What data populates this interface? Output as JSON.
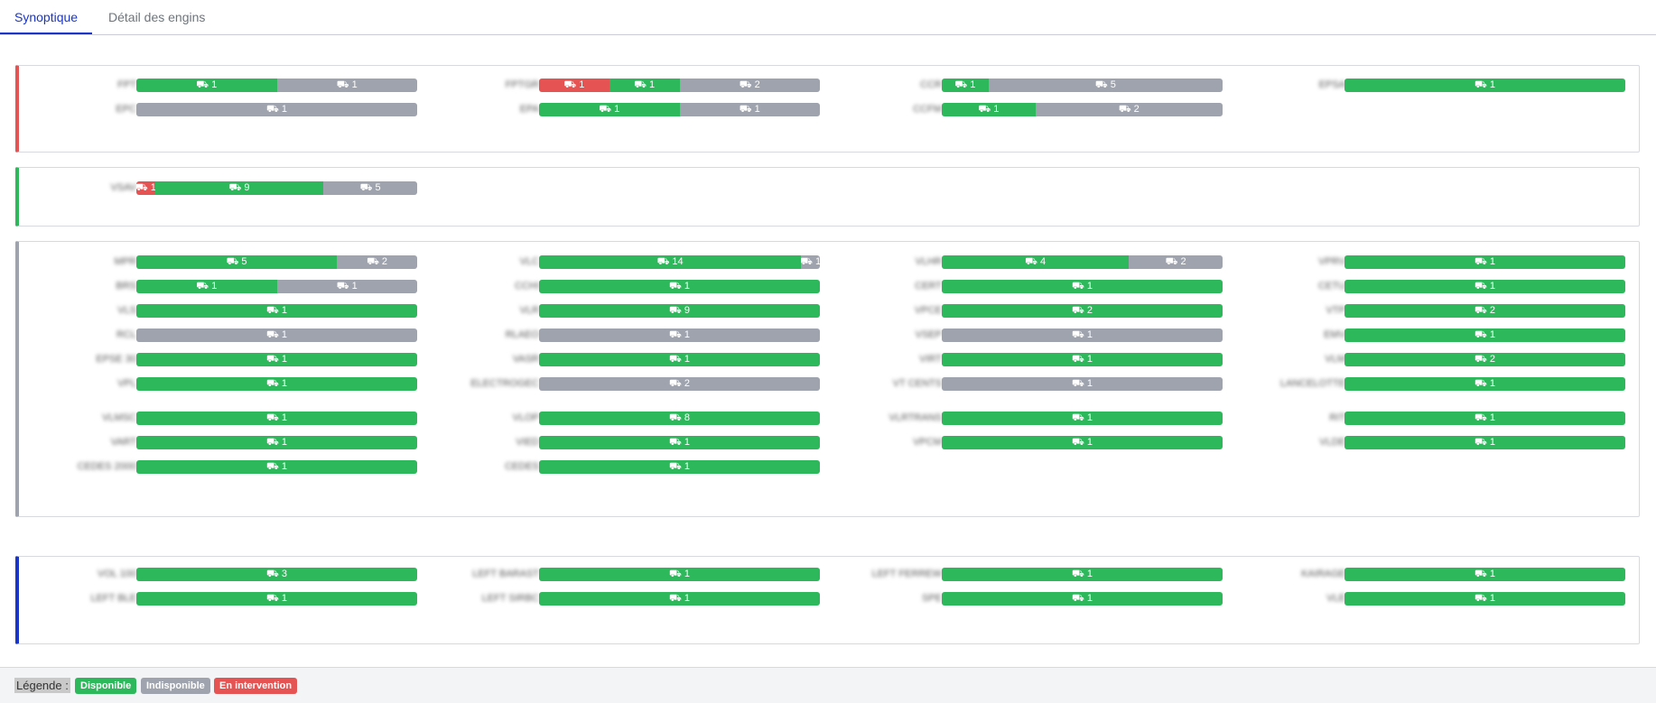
{
  "tabs": [
    {
      "label": "Synoptique",
      "active": true
    },
    {
      "label": "Détail des engins",
      "active": false
    }
  ],
  "colors": {
    "disponible": "#2eb85c",
    "indisponible": "#9ea3ad",
    "intervention": "#e55353",
    "accent": "#1a35c9"
  },
  "icons": {
    "vehicle": "truck-icon"
  },
  "panels": [
    {
      "border": "#e55353",
      "rows": [
        [
          {
            "label": "FPT",
            "segments": [
              {
                "state": "disponible",
                "count": 1
              },
              {
                "state": "indisponible",
                "count": 1
              }
            ]
          },
          {
            "label": "FPTGR",
            "segments": [
              {
                "state": "intervention",
                "count": 1
              },
              {
                "state": "disponible",
                "count": 1
              },
              {
                "state": "indisponible",
                "count": 2
              }
            ]
          },
          {
            "label": "CCR",
            "segments": [
              {
                "state": "disponible",
                "count": 1
              },
              {
                "state": "indisponible",
                "count": 5
              }
            ]
          },
          {
            "label": "EPSA",
            "segments": [
              {
                "state": "disponible",
                "count": 1
              }
            ]
          }
        ],
        [
          {
            "label": "EPC",
            "segments": [
              {
                "state": "indisponible",
                "count": 1
              }
            ]
          },
          {
            "label": "EPA",
            "segments": [
              {
                "state": "disponible",
                "count": 1
              },
              {
                "state": "indisponible",
                "count": 1
              }
            ]
          },
          {
            "label": "CCFM",
            "segments": [
              {
                "state": "disponible",
                "count": 1
              },
              {
                "state": "indisponible",
                "count": 2
              }
            ]
          }
        ]
      ]
    },
    {
      "border": "#2eb85c",
      "rows": [
        [
          {
            "label": "VSAV",
            "segments": [
              {
                "state": "intervention",
                "count": 1
              },
              {
                "state": "disponible",
                "count": 9
              },
              {
                "state": "indisponible",
                "count": 5
              }
            ]
          }
        ]
      ]
    },
    {
      "border": "#9ea3ad",
      "rows": [
        [
          {
            "label": "MPR",
            "segments": [
              {
                "state": "disponible",
                "count": 5
              },
              {
                "state": "indisponible",
                "count": 2
              }
            ]
          },
          {
            "label": "VLC",
            "segments": [
              {
                "state": "disponible",
                "count": 14
              },
              {
                "state": "indisponible",
                "count": 1
              }
            ]
          },
          {
            "label": "VLHR",
            "segments": [
              {
                "state": "disponible",
                "count": 4
              },
              {
                "state": "indisponible",
                "count": 2
              }
            ]
          },
          {
            "label": "VPRV",
            "segments": [
              {
                "state": "disponible",
                "count": 1
              }
            ]
          }
        ],
        [
          {
            "label": "BRS",
            "segments": [
              {
                "state": "disponible",
                "count": 1
              },
              {
                "state": "indisponible",
                "count": 1
              }
            ]
          },
          {
            "label": "CCHI",
            "segments": [
              {
                "state": "disponible",
                "count": 1
              }
            ]
          },
          {
            "label": "CERT",
            "segments": [
              {
                "state": "disponible",
                "count": 1
              }
            ]
          },
          {
            "label": "CETU",
            "segments": [
              {
                "state": "disponible",
                "count": 1
              }
            ]
          }
        ],
        [
          {
            "label": "VLS",
            "segments": [
              {
                "state": "disponible",
                "count": 1
              }
            ]
          },
          {
            "label": "VLR",
            "segments": [
              {
                "state": "disponible",
                "count": 9
              }
            ]
          },
          {
            "label": "VPCE",
            "segments": [
              {
                "state": "disponible",
                "count": 2
              }
            ]
          },
          {
            "label": "VTP",
            "segments": [
              {
                "state": "disponible",
                "count": 2
              }
            ]
          }
        ],
        [
          {
            "label": "RCL",
            "segments": [
              {
                "state": "indisponible",
                "count": 1
              }
            ]
          },
          {
            "label": "RLAEO",
            "segments": [
              {
                "state": "indisponible",
                "count": 1
              }
            ]
          },
          {
            "label": "VSEP",
            "segments": [
              {
                "state": "indisponible",
                "count": 1
              }
            ]
          },
          {
            "label": "EMV",
            "segments": [
              {
                "state": "disponible",
                "count": 1
              }
            ]
          }
        ],
        [
          {
            "label": "EPSE 30",
            "segments": [
              {
                "state": "disponible",
                "count": 1
              }
            ]
          },
          {
            "label": "VASR",
            "segments": [
              {
                "state": "disponible",
                "count": 1
              }
            ]
          },
          {
            "label": "VIRT",
            "segments": [
              {
                "state": "disponible",
                "count": 1
              }
            ]
          },
          {
            "label": "VLM",
            "segments": [
              {
                "state": "disponible",
                "count": 2
              }
            ]
          }
        ],
        [
          {
            "label": "VPL",
            "segments": [
              {
                "state": "disponible",
                "count": 1
              }
            ]
          },
          {
            "label": "ELECTROGEC",
            "segments": [
              {
                "state": "indisponible",
                "count": 2
              }
            ]
          },
          {
            "label": "VT CENTS",
            "segments": [
              {
                "state": "indisponible",
                "count": 1
              }
            ]
          },
          {
            "label": "LANCELOTTE",
            "segments": [
              {
                "state": "disponible",
                "count": 1
              }
            ]
          }
        ],
        [
          {
            "label": "VLMSC",
            "segments": [
              {
                "state": "disponible",
                "count": 1
              }
            ]
          },
          {
            "label": "VLOP",
            "segments": [
              {
                "state": "disponible",
                "count": 8
              }
            ]
          },
          {
            "label": "VLRTRANS",
            "segments": [
              {
                "state": "disponible",
                "count": 1
              }
            ]
          },
          {
            "label": "RIT",
            "segments": [
              {
                "state": "disponible",
                "count": 1
              }
            ]
          }
        ],
        [
          {
            "label": "VART",
            "segments": [
              {
                "state": "disponible",
                "count": 1
              }
            ]
          },
          {
            "label": "VIED",
            "segments": [
              {
                "state": "disponible",
                "count": 1
              }
            ]
          },
          {
            "label": "VPCM",
            "segments": [
              {
                "state": "disponible",
                "count": 1
              }
            ]
          },
          {
            "label": "VLDE",
            "segments": [
              {
                "state": "disponible",
                "count": 1
              }
            ]
          }
        ],
        [
          {
            "label": "CEDES 2000",
            "segments": [
              {
                "state": "disponible",
                "count": 1
              }
            ]
          },
          {
            "label": "CEDES",
            "segments": [
              {
                "state": "disponible",
                "count": 1
              }
            ]
          }
        ]
      ]
    },
    {
      "border": "#1a35c9",
      "rows": [
        [
          {
            "label": "VOL 100",
            "segments": [
              {
                "state": "disponible",
                "count": 3
              }
            ]
          },
          {
            "label": "LEFT BARAST",
            "segments": [
              {
                "state": "disponible",
                "count": 1
              }
            ]
          },
          {
            "label": "LEFT FERREW",
            "segments": [
              {
                "state": "disponible",
                "count": 1
              }
            ]
          },
          {
            "label": "KAIRAGE",
            "segments": [
              {
                "state": "disponible",
                "count": 1
              }
            ]
          }
        ],
        [
          {
            "label": "LEFT BLE",
            "segments": [
              {
                "state": "disponible",
                "count": 1
              }
            ]
          },
          {
            "label": "LEFT SIRBC",
            "segments": [
              {
                "state": "disponible",
                "count": 1
              }
            ]
          },
          {
            "label": "SPE",
            "segments": [
              {
                "state": "disponible",
                "count": 1
              }
            ]
          },
          {
            "label": "VLE",
            "segments": [
              {
                "state": "disponible",
                "count": 1
              }
            ]
          }
        ]
      ]
    }
  ],
  "legend": {
    "label": "Légende :",
    "items": [
      {
        "state": "disponible",
        "label": "Disponible"
      },
      {
        "state": "indisponible",
        "label": "Indisponible"
      },
      {
        "state": "intervention",
        "label": "En intervention"
      }
    ]
  }
}
